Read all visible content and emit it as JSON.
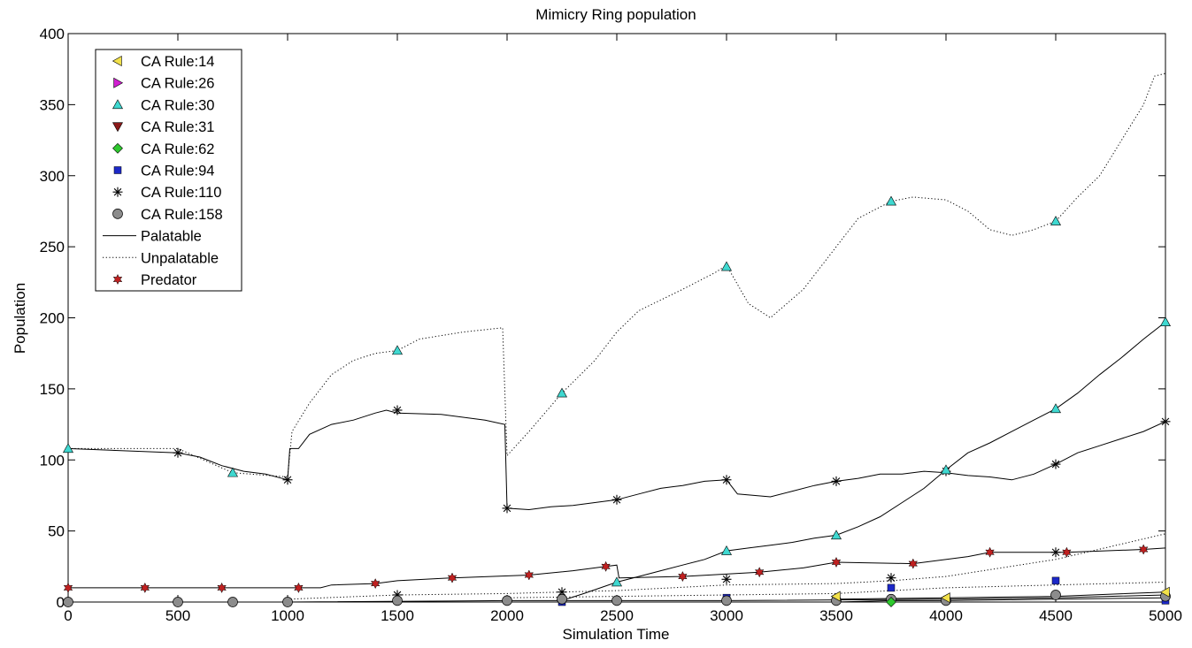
{
  "chart_data": {
    "type": "line",
    "title": "Mimicry Ring population",
    "xlabel": "Simulation Time",
    "ylabel": "Population",
    "xlim": [
      0,
      5000
    ],
    "ylim": [
      0,
      400
    ],
    "xticks": [
      0,
      500,
      1000,
      1500,
      2000,
      2500,
      3000,
      3500,
      4000,
      4500,
      5000
    ],
    "yticks": [
      0,
      50,
      100,
      150,
      200,
      250,
      300,
      350,
      400
    ],
    "grid": false,
    "legend_position": "top-left",
    "legend": [
      {
        "label": "CA Rule:14",
        "marker": "triangle-left",
        "color": "#f2e14a"
      },
      {
        "label": "CA Rule:26",
        "marker": "triangle-right",
        "color": "#d01fd0"
      },
      {
        "label": "CA Rule:30",
        "marker": "triangle-up",
        "color": "#3fd8d0"
      },
      {
        "label": "CA Rule:31",
        "marker": "triangle-down",
        "color": "#8b1a1a"
      },
      {
        "label": "CA Rule:62",
        "marker": "diamond",
        "color": "#2ec82e"
      },
      {
        "label": "CA Rule:94",
        "marker": "square",
        "color": "#1c28c8"
      },
      {
        "label": "CA Rule:110",
        "marker": "asterisk",
        "color": "#000000"
      },
      {
        "label": "CA Rule:158",
        "marker": "circle",
        "color": "#8c8c8c"
      },
      {
        "label": "Palatable",
        "marker": "line-solid",
        "color": "#000000"
      },
      {
        "label": "Unpalatable",
        "marker": "line-dotted",
        "color": "#000000"
      },
      {
        "label": "Predator",
        "marker": "hexagram",
        "color": "#c02020"
      }
    ],
    "series": [
      {
        "rule": "CA Rule:30",
        "kind": "unpalatable",
        "marker": "triangle-up",
        "color": "#3fd8d0",
        "x": [
          0,
          500,
          750,
          1000,
          1020,
          1100,
          1200,
          1300,
          1400,
          1500,
          1600,
          1800,
          1980,
          2000,
          2100,
          2250,
          2400,
          2500,
          2600,
          2800,
          2950,
          3000,
          3100,
          3200,
          3350,
          3500,
          3600,
          3750,
          3850,
          4000,
          4100,
          4200,
          4300,
          4400,
          4500,
          4600,
          4700,
          4800,
          4900,
          4950,
          5000
        ],
        "y": [
          108,
          108,
          91,
          88,
          120,
          140,
          160,
          170,
          175,
          177,
          185,
          190,
          193,
          103,
          120,
          147,
          170,
          190,
          205,
          220,
          232,
          237,
          210,
          200,
          220,
          250,
          270,
          282,
          285,
          283,
          275,
          262,
          258,
          262,
          268,
          285,
          300,
          325,
          350,
          370,
          372
        ],
        "markers": [
          [
            0,
            108
          ],
          [
            750,
            91
          ],
          [
            1500,
            177
          ],
          [
            2250,
            147
          ],
          [
            3000,
            236
          ],
          [
            3750,
            282
          ],
          [
            4500,
            268
          ]
        ]
      },
      {
        "rule": "CA Rule:110",
        "kind": "palatable",
        "marker": "asterisk",
        "color": "#000000",
        "x": [
          0,
          500,
          600,
          650,
          700,
          800,
          900,
          1000,
          1010,
          1050,
          1100,
          1200,
          1300,
          1400,
          1450,
          1500,
          1700,
          1900,
          1990,
          2000,
          2100,
          2200,
          2300,
          2400,
          2500,
          2600,
          2700,
          2800,
          2900,
          3000,
          3050,
          3200,
          3300,
          3400,
          3500,
          3600,
          3700,
          3800,
          3900,
          4000,
          4100,
          4200,
          4300,
          4400,
          4500,
          4600,
          4700,
          4800,
          4900,
          5000
        ],
        "y": [
          108,
          105,
          102,
          99,
          96,
          92,
          90,
          86,
          108,
          108,
          118,
          125,
          128,
          133,
          135,
          133,
          132,
          128,
          125,
          66,
          65,
          67,
          68,
          70,
          72,
          76,
          80,
          82,
          85,
          86,
          76,
          74,
          78,
          82,
          85,
          87,
          90,
          90,
          92,
          91,
          89,
          88,
          86,
          90,
          97,
          105,
          110,
          115,
          120,
          127
        ],
        "markers": [
          [
            500,
            105
          ],
          [
            1000,
            86
          ],
          [
            1500,
            135
          ],
          [
            2000,
            66
          ],
          [
            2500,
            72
          ],
          [
            3000,
            86
          ],
          [
            3500,
            85
          ],
          [
            4000,
            92
          ],
          [
            4500,
            97
          ],
          [
            5000,
            127
          ]
        ]
      },
      {
        "rule": "CA Rule:30",
        "kind": "palatable",
        "marker": "triangle-up",
        "color": "#3fd8d0",
        "x": [
          2250,
          2350,
          2500,
          2600,
          2700,
          2800,
          2900,
          3000,
          3100,
          3200,
          3300,
          3400,
          3500,
          3600,
          3700,
          3800,
          3900,
          4000,
          4100,
          4200,
          4300,
          4400,
          4500,
          4600,
          4700,
          4800,
          4900,
          5000
        ],
        "y": [
          1,
          6,
          14,
          18,
          22,
          26,
          30,
          36,
          38,
          40,
          42,
          45,
          47,
          53,
          60,
          70,
          80,
          93,
          105,
          112,
          120,
          128,
          136,
          147,
          160,
          172,
          185,
          197
        ],
        "markers": [
          [
            2500,
            14
          ],
          [
            3000,
            36
          ],
          [
            3500,
            47
          ],
          [
            4000,
            93
          ],
          [
            4500,
            136
          ],
          [
            5000,
            197
          ]
        ]
      },
      {
        "rule": "Predator",
        "kind": "predator",
        "marker": "hexagram",
        "color": "#c02020",
        "x": [
          0,
          350,
          700,
          1050,
          1150,
          1200,
          1400,
          1500,
          1750,
          2100,
          2300,
          2450,
          2500,
          2510,
          2800,
          3150,
          3350,
          3500,
          3850,
          4100,
          4200,
          4550,
          4900,
          5000
        ],
        "y": [
          10,
          10,
          10,
          10,
          10,
          12,
          13,
          15,
          17,
          19,
          22,
          25,
          26,
          17,
          18,
          21,
          24,
          28,
          27,
          32,
          35,
          35,
          37,
          38
        ],
        "markers": [
          [
            0,
            10
          ],
          [
            350,
            10
          ],
          [
            700,
            10
          ],
          [
            1050,
            10
          ],
          [
            1400,
            13
          ],
          [
            1750,
            17
          ],
          [
            2100,
            19
          ],
          [
            2450,
            25
          ],
          [
            2800,
            18
          ],
          [
            3150,
            21
          ],
          [
            3500,
            28
          ],
          [
            3850,
            27
          ],
          [
            4200,
            35
          ],
          [
            4550,
            35
          ],
          [
            4900,
            37
          ]
        ]
      },
      {
        "rule": "CA Rule:110",
        "kind": "unpalatable",
        "marker": "asterisk",
        "color": "#000000",
        "x": [
          1000,
          1500,
          2000,
          2250,
          2500,
          3000,
          3500,
          3750,
          4000,
          4500,
          5000
        ],
        "y": [
          2,
          5,
          6,
          7,
          8,
          12,
          13,
          15,
          18,
          30,
          48
        ],
        "markers": [
          [
            1500,
            5
          ],
          [
            2250,
            7
          ],
          [
            3000,
            16
          ],
          [
            3750,
            17
          ],
          [
            4500,
            35
          ]
        ]
      },
      {
        "rule": "CA Rule:94",
        "kind": "unpalatable",
        "marker": "square",
        "color": "#1c28c8",
        "x": [
          2000,
          2500,
          3000,
          3500,
          3750,
          4000,
          4500,
          5000
        ],
        "y": [
          3,
          4,
          5,
          6,
          8,
          10,
          12,
          14
        ],
        "markers": [
          [
            2250,
            0
          ],
          [
            3000,
            3
          ],
          [
            3750,
            10
          ],
          [
            4500,
            15
          ],
          [
            5000,
            1
          ]
        ]
      },
      {
        "rule": "CA Rule:158",
        "kind": "palatable",
        "marker": "circle",
        "color": "#8c8c8c",
        "x": [
          0,
          1000,
          2000,
          3000,
          4000,
          4500,
          5000
        ],
        "y": [
          0,
          0,
          1,
          1,
          2,
          3,
          5
        ],
        "markers": [
          [
            0,
            0
          ],
          [
            500,
            0
          ],
          [
            750,
            0
          ],
          [
            1000,
            0
          ],
          [
            1500,
            1
          ],
          [
            2000,
            1
          ],
          [
            2250,
            2
          ],
          [
            2500,
            1
          ],
          [
            3000,
            1
          ],
          [
            3500,
            1
          ],
          [
            3750,
            2
          ],
          [
            4000,
            1
          ],
          [
            4500,
            5
          ],
          [
            5000,
            4
          ]
        ]
      },
      {
        "rule": "CA Rule:62",
        "kind": "palatable",
        "marker": "diamond",
        "color": "#2ec82e",
        "x": [
          3500,
          3750,
          4000,
          4500,
          5000
        ],
        "y": [
          0,
          1,
          1,
          2,
          3
        ],
        "markers": [
          [
            3750,
            -1
          ]
        ]
      },
      {
        "rule": "CA Rule:14",
        "kind": "palatable",
        "marker": "triangle-left",
        "color": "#f2e14a",
        "x": [
          3500,
          4000,
          4500,
          5000
        ],
        "y": [
          2,
          3,
          4,
          7
        ],
        "markers": [
          [
            3500,
            4
          ],
          [
            4000,
            3
          ],
          [
            5000,
            7
          ]
        ]
      }
    ]
  }
}
